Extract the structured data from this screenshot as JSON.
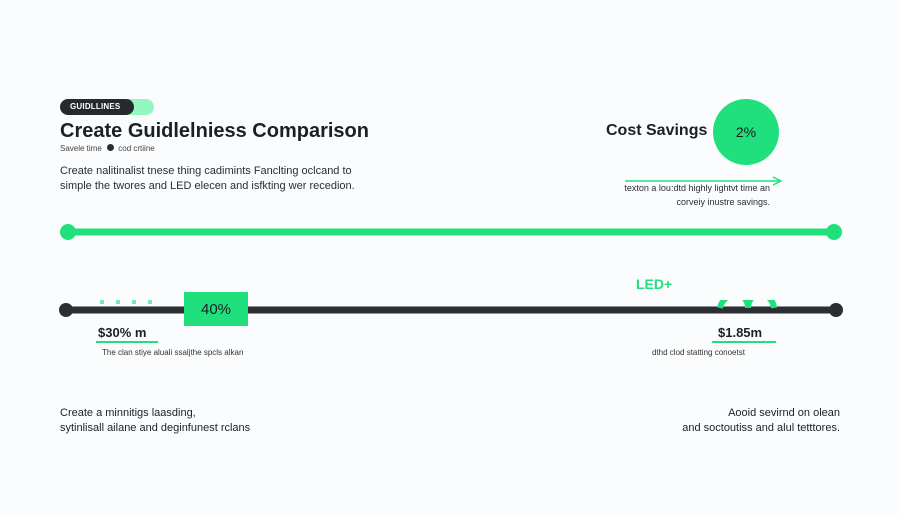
{
  "header": {
    "badge": "GUIDLLINES",
    "title": "Create Guidlelniess Comparison",
    "meta_left": "Savele time",
    "meta_right": "cod crtiine",
    "description_line1": "Create nalitinalist tnese thing cadimints Fanclting oclcand to",
    "description_line2": "simple the twores and LED elecen and isfkting wer recedion."
  },
  "cost": {
    "title": "Cost Savings",
    "percent": "2%",
    "desc_line1": "texton a lou:dtd highly lightvt time an",
    "desc_line2": "corveiy inustre savings."
  },
  "timeline": {
    "segment_label": "40%",
    "led_label": "LED+",
    "left_value": "$30% m",
    "left_note": "The clan stiye aluali ssaljthe spcls alkan",
    "right_value": "$1.85m",
    "right_note": "dthd clod statting conoetst"
  },
  "footer": {
    "left_line1": "Create a minnitigs laasding,",
    "left_line2": "sytinlisall ailane and deginfunest rclans",
    "right_line1": "Aooid sevirnd on olean",
    "right_line2": "and soctoutiss and alul tetttores."
  },
  "colors": {
    "accent": "#1fe07c",
    "dark": "#26292e",
    "background": "#fbfcfd"
  }
}
